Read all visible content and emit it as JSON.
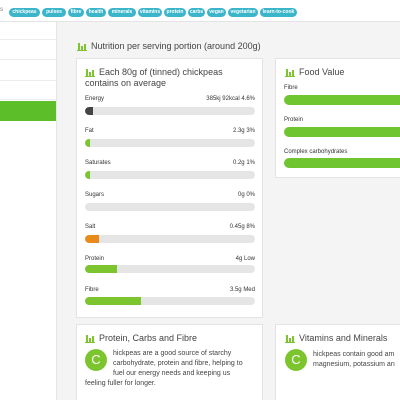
{
  "tags": {
    "cut_label": "s",
    "items": [
      "chickpeas",
      "pulses",
      "fibre",
      "health",
      "minerals",
      "vitamins",
      "protein",
      "carbs",
      "vegan",
      "vegetarian",
      "learn-to-cook"
    ]
  },
  "colors": {
    "tag": "#3ab5c9",
    "green": "#7cc52f",
    "energy": "#444444",
    "salt": "#e88a1a",
    "track": "#e5e5e5"
  },
  "nutrition": {
    "heading": "Nutrition per serving portion (around 200g)",
    "per80": {
      "title": "Each 80g of (tinned) chickpeas contains on average",
      "rows": [
        {
          "label": "Energy",
          "value": "385kj 92kcal 4.6%",
          "pct": 0.046,
          "color": "#444444"
        },
        {
          "label": "Fat",
          "value": "2.3g 3%",
          "pct": 0.03,
          "color": "#7cc52f"
        },
        {
          "label": "Saturates",
          "value": "0.2g 1%",
          "pct": 0.01,
          "color": "#7cc52f"
        },
        {
          "label": "Sugars",
          "value": "0g 0%",
          "pct": 0.0,
          "color": "#7cc52f"
        },
        {
          "label": "Salt",
          "value": "0.45g 8%",
          "pct": 0.08,
          "color": "#e88a1a"
        },
        {
          "label": "Protein",
          "value": "4g Low",
          "pct": 0.19,
          "color": "#7cc52f"
        },
        {
          "label": "Fibre",
          "value": "3.5g Med",
          "pct": 0.33,
          "color": "#7cc52f"
        }
      ]
    },
    "food_value": {
      "title": "Food Value",
      "rows": [
        {
          "label": "Fibre",
          "pct": 1.0
        },
        {
          "label": "Protein",
          "pct": 1.0
        },
        {
          "label": "Complex carbohydrates",
          "pct": 1.0
        }
      ]
    }
  },
  "protein_card": {
    "title": "Protein, Carbs and Fibre",
    "initial": "C",
    "line1": "hickpeas are a good source of starchy",
    "line2": "carbohydrate, protein and fibre, helping to",
    "line3": "fuel our energy needs and keeping us",
    "line4": "feeling fuller for longer."
  },
  "vitamins_card": {
    "title": "Vitamins and Minerals",
    "initial": "C",
    "line1": "hickpeas contain good am",
    "line2": "magnesium, potassium an"
  }
}
